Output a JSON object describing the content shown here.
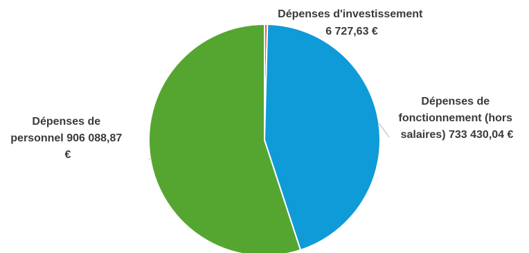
{
  "chart_data": {
    "type": "pie",
    "slices": [
      {
        "name": "Dépenses d'investissement",
        "value": 6727.63,
        "value_label": "6 727,63 €",
        "color": "#e2622e"
      },
      {
        "name": "Dépenses de fonctionnement (hors salaires)",
        "value": 733430.04,
        "value_label": "733 430,04 €",
        "color": "#0f9ad8"
      },
      {
        "name": "Dépenses de personnel",
        "value": 906088.87,
        "value_label": "906 088,87 €",
        "color": "#55a630"
      }
    ],
    "labels": {
      "investissement": [
        "Dépenses d'investissement",
        "6 727,63 €"
      ],
      "fonctionnement": [
        "Dépenses de",
        "fonctionnement (hors",
        "salaires) 733 430,04 €"
      ],
      "personnel": [
        "Dépenses de",
        "personnel 906 088,87",
        "€"
      ]
    },
    "start_angle": "top",
    "direction": "clockwise"
  }
}
